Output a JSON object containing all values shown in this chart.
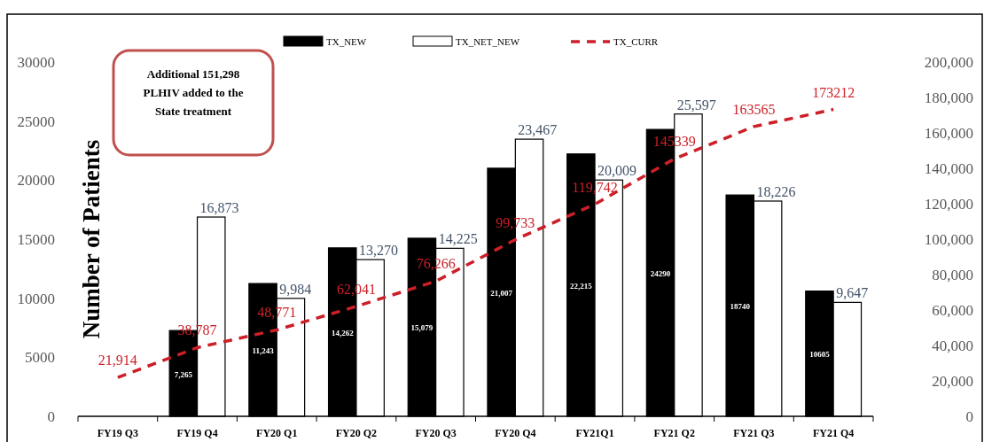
{
  "chart_data": {
    "type": "bar",
    "ylabel": "Number of Patients",
    "categories": [
      "FY19 Q3",
      "FY19 Q4",
      "FY20 Q1",
      "FY20 Q2",
      "FY20 Q3",
      "FY20 Q4",
      "FY21Q1",
      "FY21 Q2",
      "FY21 Q3",
      "FY21 Q4"
    ],
    "series": [
      {
        "name": "TX_NEW",
        "color": "#000000",
        "values": [
          null,
          7265,
          11243,
          14262,
          15079,
          21007,
          22215,
          24290,
          18740,
          10605
        ],
        "value_labels": [
          null,
          "7,265",
          "11,243",
          "14,262",
          "15,079",
          "21,007",
          "22,215",
          "24290",
          "18740",
          "10605"
        ]
      },
      {
        "name": "TX_NET_NEW",
        "color": "#ffffff",
        "values": [
          null,
          16873,
          9984,
          13270,
          14225,
          23467,
          20009,
          25597,
          18226,
          9647
        ],
        "value_labels": [
          null,
          "16,873",
          "9,984",
          "13,270",
          "14,225",
          "23,467",
          "20,009",
          "25,597",
          "18,226",
          "9,647"
        ]
      },
      {
        "name": "TX_CURR",
        "type": "line",
        "axis": "y2",
        "color": "#cc1f27",
        "line_style": "dashed",
        "marker": "none",
        "values": [
          21914,
          38787,
          48771,
          62041,
          76266,
          99733,
          119742,
          145339,
          163565,
          173212
        ],
        "value_labels": [
          "21,914",
          "38,787",
          "48,771",
          "62,041",
          "76,266",
          "99,733",
          "119,742",
          "145339",
          "163565",
          "173212"
        ]
      }
    ],
    "ylim": [
      0,
      30000
    ],
    "yticks": [
      0,
      5000,
      10000,
      15000,
      20000,
      25000,
      30000
    ],
    "y2lim": [
      0,
      200000
    ],
    "y2ticks": [
      0,
      {
        "value": 20000,
        "label": "20,000"
      },
      {
        "value": 40000,
        "label": "40,000"
      },
      {
        "value": 60000,
        "label": "60,000"
      },
      {
        "value": 80000,
        "label": "80,000"
      },
      {
        "value": 100000,
        "label": "100,000"
      },
      {
        "value": 120000,
        "label": "120,000"
      },
      {
        "value": 140000,
        "label": "140,000"
      },
      {
        "value": 160000,
        "label": "160,000"
      },
      {
        "value": 180000,
        "label": "180,000"
      },
      {
        "value": 200000,
        "label": "200,000"
      }
    ],
    "annotations": [
      "Additional 151,298 PLHIV added to the State treatment"
    ],
    "legend": "top",
    "grid": false
  }
}
